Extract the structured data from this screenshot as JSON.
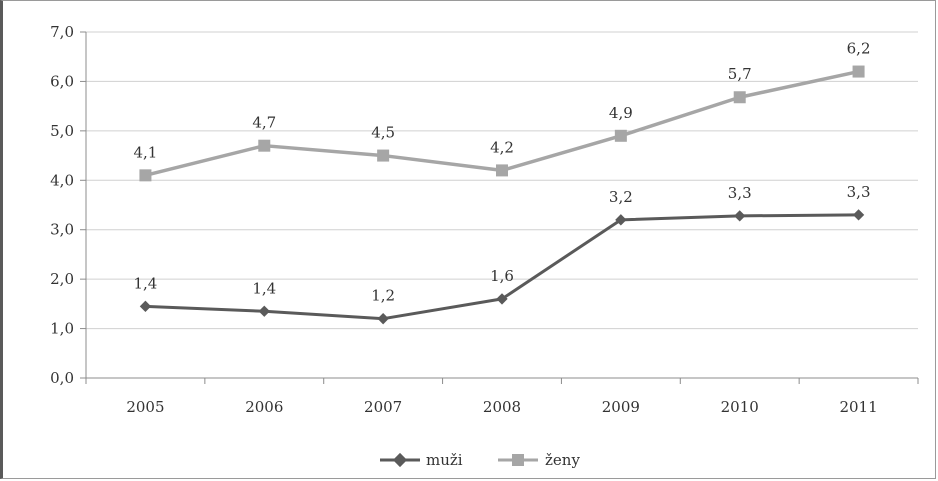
{
  "chart_data": {
    "type": "line",
    "categories": [
      "2005",
      "2006",
      "2007",
      "2008",
      "2009",
      "2010",
      "2011"
    ],
    "series": [
      {
        "name": "muži",
        "color": "#5a5a5a",
        "marker": "diamond",
        "values": [
          1.45,
          1.35,
          1.2,
          1.6,
          3.2,
          3.28,
          3.3
        ],
        "labels": [
          "1,4",
          "1,4",
          "1,2",
          "1,6",
          "3,2",
          "3,3",
          "3,3"
        ]
      },
      {
        "name": "ženy",
        "color": "#a6a6a6",
        "marker": "square",
        "values": [
          4.1,
          4.7,
          4.5,
          4.2,
          4.9,
          5.68,
          6.2
        ],
        "labels": [
          "4,1",
          "4,7",
          "4,5",
          "4,2",
          "4,9",
          "5,7",
          "6,2"
        ]
      }
    ],
    "yticks": [
      "0,0",
      "1,0",
      "2,0",
      "3,0",
      "4,0",
      "5,0",
      "6,0",
      "7,0"
    ],
    "ylim": [
      0,
      7
    ],
    "grid": true,
    "legend": "bottom"
  }
}
